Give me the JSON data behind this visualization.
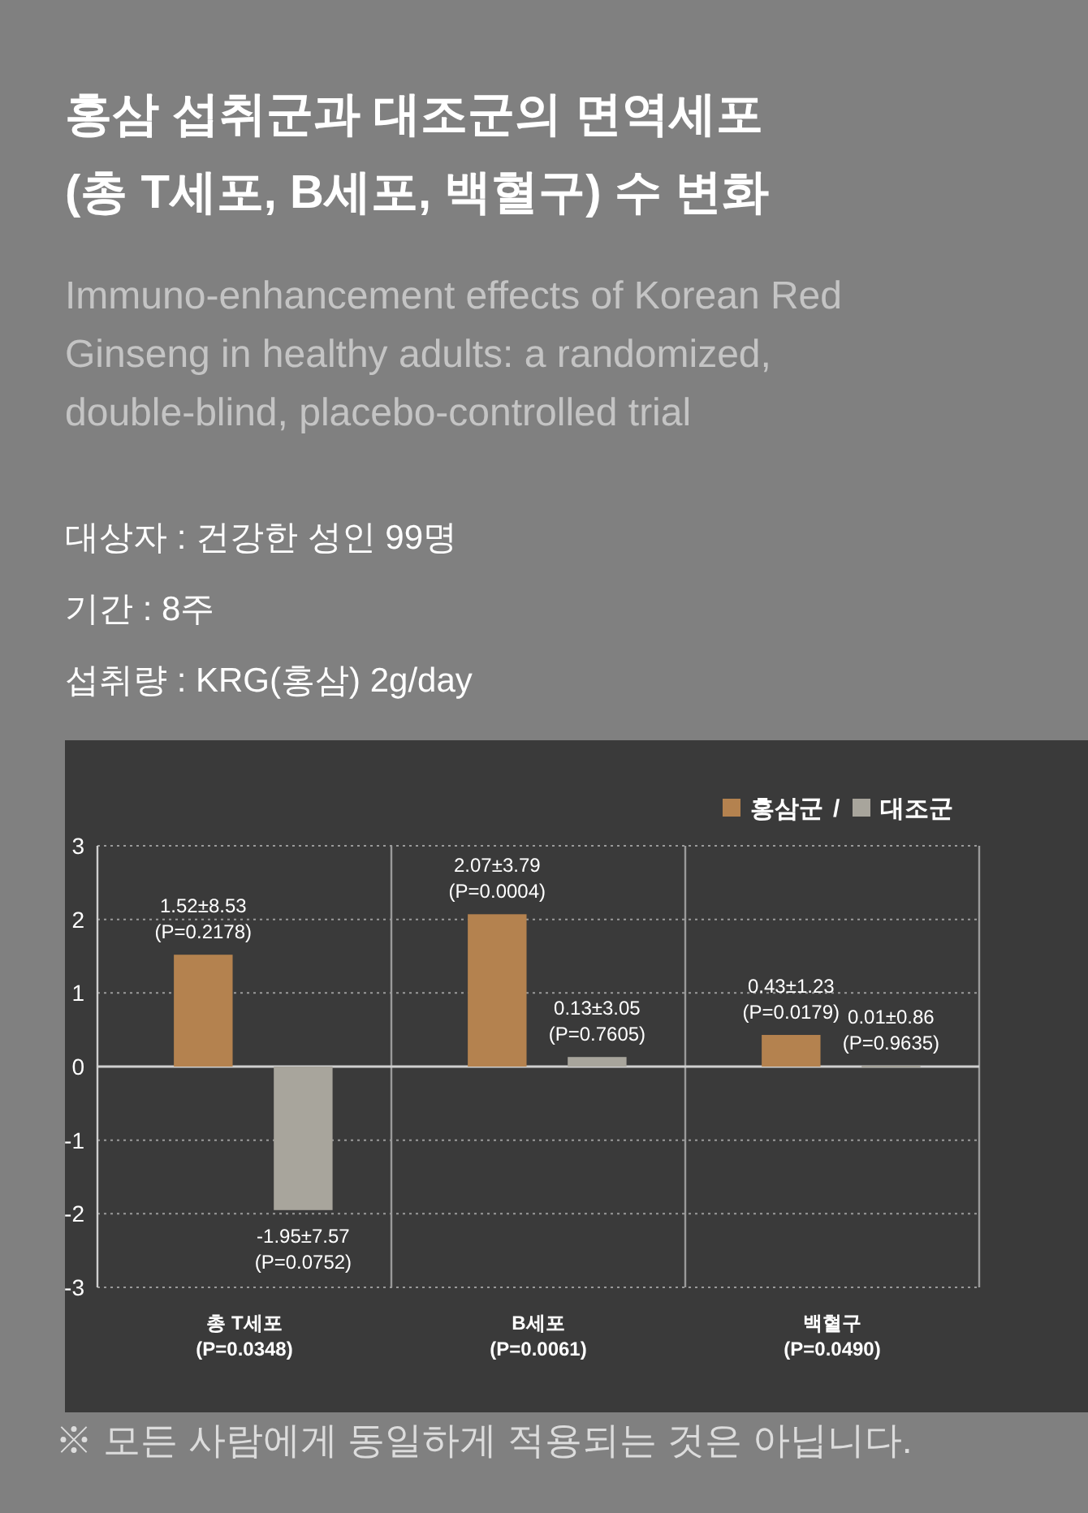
{
  "chart_data": {
    "type": "bar",
    "title": "홍삼 섭취군과 대조군의 면역세포\n(총 T세포, B세포, 백혈구) 수 변화",
    "subtitle": "Immuno-enhancement effects of Korean Red\nGinseng in healthy  adults: a randomized,\ndouble-blind, placebo-controlled trial",
    "annotations": [
      "대상자 : 건강한 성인 99명",
      "기간 : 8주",
      "섭취량 : KRG(홍삼) 2g/day",
      "※ 모든 사람에게 동일하게 적용되는 것은 아닙니다.",
      "/"
    ],
    "categories": [
      "총 T세포\n(P=0.0348)",
      "B세포\n(P=0.0061)",
      "백혈구\n(P=0.0490)"
    ],
    "series": [
      {
        "name": "홍삼군",
        "color": "#b4824f",
        "values": [
          1.52,
          2.07,
          0.43
        ],
        "value_labels": [
          "1.52±8.53\n(P=0.2178)",
          "2.07±3.79\n(P=0.0004)",
          "0.43±1.23\n(P=0.0179)"
        ]
      },
      {
        "name": "대조군",
        "color": "#a8a59c",
        "values": [
          -1.95,
          0.13,
          0.01
        ],
        "value_labels": [
          "-1.95±7.57\n(P=0.0752)",
          "0.13±3.05\n(P=0.7605)",
          "0.01±0.86\n(P=0.9635)"
        ]
      }
    ],
    "ylim": [
      -3,
      3
    ],
    "yticks": [
      -3,
      -2,
      -1,
      0,
      1,
      2,
      3
    ],
    "grid": "y",
    "legend": "top right"
  }
}
